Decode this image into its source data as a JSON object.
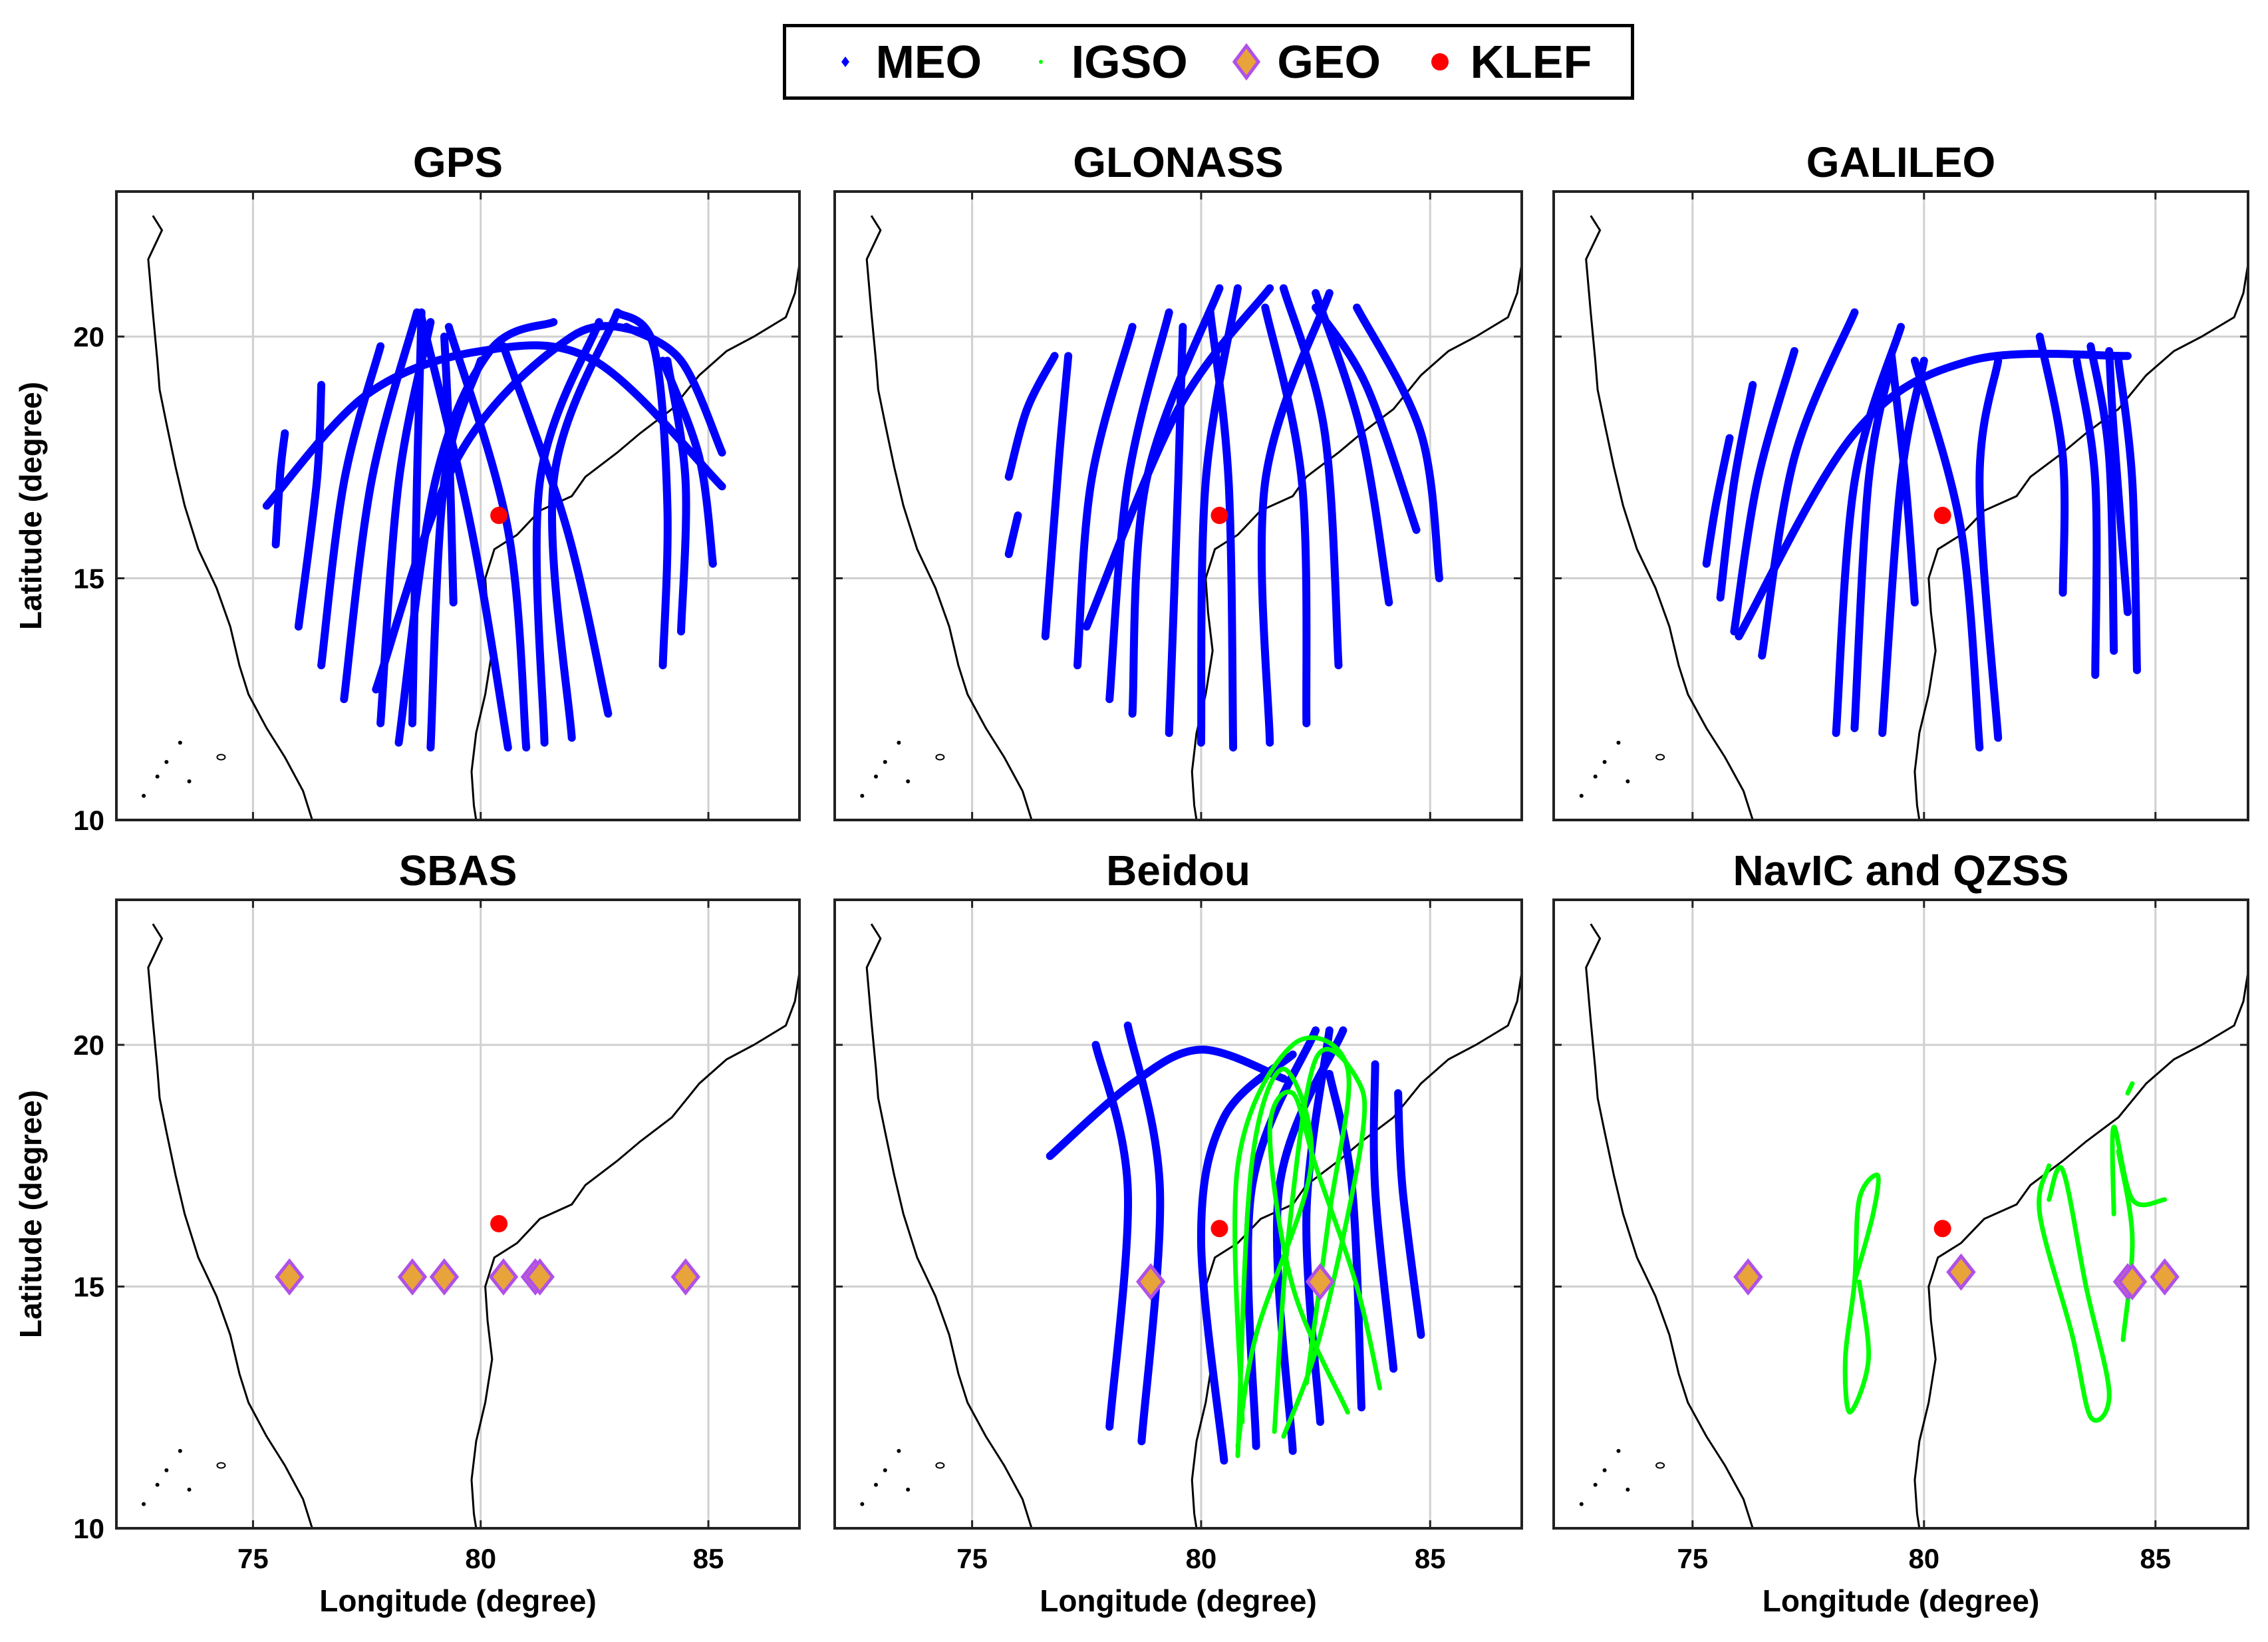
{
  "legend": {
    "items": [
      {
        "label": "MEO",
        "color": "#0000ff"
      },
      {
        "label": "IGSO",
        "color": "#00ff00"
      },
      {
        "label": "GEO",
        "color": "#e8a33a",
        "edge": "#b050e8"
      },
      {
        "label": "KLEF",
        "color": "#ff0000"
      }
    ]
  },
  "chart_data": [
    {
      "type": "scatter",
      "title": "GPS",
      "ylabel": "Latitude (degree)",
      "xlabel": "",
      "xlim": [
        72,
        87
      ],
      "ylim": [
        10,
        23
      ],
      "xticks": [
        75,
        80,
        85
      ],
      "yticks": [
        10,
        15,
        20
      ],
      "klef": [
        80.4,
        16.3
      ],
      "meo_tracks": [
        [
          [
            75.3,
            16.5
          ],
          [
            77.5,
            18.8
          ],
          [
            80,
            19.7
          ],
          [
            82.5,
            19.5
          ],
          [
            85.3,
            16.9
          ]
        ],
        [
          [
            75.5,
            15.7
          ],
          [
            75.6,
            17.2
          ],
          [
            75.7,
            18
          ]
        ],
        [
          [
            76,
            14
          ],
          [
            76.4,
            17
          ],
          [
            76.5,
            19
          ]
        ],
        [
          [
            76.5,
            13.2
          ],
          [
            77,
            17
          ],
          [
            77.8,
            19.8
          ]
        ],
        [
          [
            77,
            12.5
          ],
          [
            77.6,
            17
          ],
          [
            78.6,
            20.5
          ]
        ],
        [
          [
            77.8,
            12
          ],
          [
            78.2,
            17
          ],
          [
            78.9,
            20.3
          ]
        ],
        [
          [
            78.2,
            11.6
          ],
          [
            79,
            17
          ],
          [
            80.2,
            19.7
          ],
          [
            81.6,
            20.3
          ]
        ],
        [
          [
            78.5,
            12
          ],
          [
            78.6,
            17
          ],
          [
            78.7,
            20.5
          ]
        ],
        [
          [
            78.9,
            11.5
          ],
          [
            79.2,
            17
          ],
          [
            80,
            19.5
          ]
        ],
        [
          [
            79.4,
            14.5
          ],
          [
            79.3,
            18
          ],
          [
            79.2,
            20
          ]
        ],
        [
          [
            80.6,
            11.5
          ],
          [
            79.8,
            16
          ],
          [
            78.7,
            20.4
          ]
        ],
        [
          [
            81,
            11.5
          ],
          [
            80.6,
            16
          ],
          [
            79.3,
            20.2
          ]
        ],
        [
          [
            81.4,
            11.6
          ],
          [
            81.3,
            17
          ],
          [
            82.6,
            20.3
          ]
        ],
        [
          [
            82,
            11.7
          ],
          [
            81.6,
            17
          ],
          [
            83,
            20.5
          ]
        ],
        [
          [
            82.8,
            12.2
          ],
          [
            81.9,
            16
          ],
          [
            80.5,
            19.8
          ]
        ],
        [
          [
            84,
            13.2
          ],
          [
            84.1,
            16.5
          ],
          [
            83.8,
            19.8
          ],
          [
            83,
            20.5
          ]
        ],
        [
          [
            84.4,
            13.9
          ],
          [
            84.5,
            17
          ],
          [
            84.1,
            19.5
          ]
        ],
        [
          [
            85.1,
            15.3
          ],
          [
            84.8,
            17.5
          ],
          [
            84,
            19.5
          ]
        ],
        [
          [
            85.3,
            17.6
          ],
          [
            84.4,
            19.5
          ],
          [
            83.2,
            20.2
          ]
        ],
        [
          [
            77.7,
            12.7
          ],
          [
            79.5,
            17.5
          ],
          [
            82,
            20
          ],
          [
            83.6,
            20.1
          ]
        ]
      ]
    },
    {
      "type": "scatter",
      "title": "GLONASS",
      "ylabel": "",
      "xlabel": "",
      "xlim": [
        72,
        87
      ],
      "ylim": [
        10,
        23
      ],
      "xticks": [
        75,
        80,
        85
      ],
      "yticks": [
        10,
        15,
        20
      ],
      "klef": [
        80.4,
        16.3
      ],
      "meo_tracks": [
        [
          [
            75.8,
            17.1
          ],
          [
            76.2,
            18.5
          ],
          [
            76.8,
            19.6
          ]
        ],
        [
          [
            75.8,
            15.5
          ],
          [
            76,
            16.3
          ]
        ],
        [
          [
            76.6,
            13.8
          ],
          [
            76.9,
            17.5
          ],
          [
            77.1,
            19.6
          ]
        ],
        [
          [
            77.3,
            13.2
          ],
          [
            77.6,
            17
          ],
          [
            78.5,
            20.2
          ]
        ],
        [
          [
            78,
            12.5
          ],
          [
            78.4,
            17
          ],
          [
            79.3,
            20.5
          ]
        ],
        [
          [
            78.5,
            12.2
          ],
          [
            78.8,
            17
          ],
          [
            80.4,
            21
          ]
        ],
        [
          [
            79.3,
            11.8
          ],
          [
            79.5,
            17
          ],
          [
            79.6,
            20.2
          ]
        ],
        [
          [
            80,
            11.6
          ],
          [
            80.1,
            17
          ],
          [
            80.8,
            21
          ]
        ],
        [
          [
            80.7,
            11.5
          ],
          [
            80.6,
            17
          ],
          [
            80.2,
            20.5
          ]
        ],
        [
          [
            81.5,
            11.6
          ],
          [
            81.4,
            17
          ],
          [
            82.8,
            20.9
          ]
        ],
        [
          [
            82.3,
            12
          ],
          [
            82.2,
            17
          ],
          [
            81.4,
            20.6
          ]
        ],
        [
          [
            83,
            13.2
          ],
          [
            82.7,
            18
          ],
          [
            81.8,
            21
          ]
        ],
        [
          [
            84.1,
            14.5
          ],
          [
            83.5,
            18
          ],
          [
            82.5,
            20.9
          ]
        ],
        [
          [
            85.2,
            15
          ],
          [
            84.8,
            18
          ],
          [
            83.4,
            20.6
          ]
        ],
        [
          [
            84.7,
            16
          ],
          [
            83.6,
            19
          ],
          [
            82.5,
            20.6
          ]
        ],
        [
          [
            77.5,
            14
          ],
          [
            79.5,
            18.5
          ],
          [
            81.5,
            21
          ]
        ]
      ]
    },
    {
      "type": "scatter",
      "title": "GALILEO",
      "ylabel": "",
      "xlabel": "",
      "xlim": [
        72,
        87
      ],
      "ylim": [
        10,
        23
      ],
      "xticks": [
        75,
        80,
        85
      ],
      "yticks": [
        10,
        15,
        20
      ],
      "klef": [
        80.4,
        16.3
      ],
      "meo_tracks": [
        [
          [
            75.3,
            15.3
          ],
          [
            75.5,
            16.5
          ],
          [
            75.8,
            17.9
          ]
        ],
        [
          [
            75.6,
            14.6
          ],
          [
            75.9,
            17
          ],
          [
            76.3,
            19
          ]
        ],
        [
          [
            75.9,
            13.9
          ],
          [
            76.4,
            17
          ],
          [
            77.2,
            19.7
          ]
        ],
        [
          [
            76.5,
            13.4
          ],
          [
            77.2,
            17.5
          ],
          [
            78.5,
            20.5
          ]
        ],
        [
          [
            78.1,
            11.8
          ],
          [
            78.5,
            17
          ],
          [
            79.5,
            20.2
          ]
        ],
        [
          [
            78.5,
            11.9
          ],
          [
            78.8,
            17
          ],
          [
            79.3,
            19.5
          ]
        ],
        [
          [
            79.1,
            11.8
          ],
          [
            79.5,
            17
          ],
          [
            80,
            19.5
          ]
        ],
        [
          [
            79.8,
            14.5
          ],
          [
            79.6,
            17
          ],
          [
            79.3,
            19.6
          ]
        ],
        [
          [
            81.2,
            11.5
          ],
          [
            80.8,
            16
          ],
          [
            79.8,
            19.5
          ]
        ],
        [
          [
            81.6,
            11.7
          ],
          [
            81.2,
            17
          ],
          [
            81.6,
            19.5
          ]
        ],
        [
          [
            83,
            14.7
          ],
          [
            83,
            17.5
          ],
          [
            82.5,
            20
          ]
        ],
        [
          [
            83.7,
            13
          ],
          [
            83.7,
            17
          ],
          [
            83.3,
            19.5
          ]
        ],
        [
          [
            84.1,
            13.5
          ],
          [
            84,
            17.5
          ],
          [
            83.6,
            19.8
          ]
        ],
        [
          [
            84.4,
            14.3
          ],
          [
            84.1,
            18
          ],
          [
            84,
            19.7
          ]
        ],
        [
          [
            84.6,
            13.1
          ],
          [
            84.5,
            17
          ],
          [
            84.2,
            19.5
          ]
        ],
        [
          [
            76,
            13.8
          ],
          [
            78.5,
            18
          ],
          [
            81,
            19.5
          ],
          [
            84.4,
            19.6
          ]
        ]
      ]
    },
    {
      "type": "scatter",
      "title": "SBAS",
      "ylabel": "Latitude (degree)",
      "xlabel": "Longitude (degree)",
      "xlim": [
        72,
        87
      ],
      "ylim": [
        10,
        23
      ],
      "xticks": [
        75,
        80,
        85
      ],
      "yticks": [
        10,
        15,
        20
      ],
      "klef": [
        80.4,
        16.3
      ],
      "geo": [
        [
          75.8,
          15.2
        ],
        [
          78.5,
          15.2
        ],
        [
          79.2,
          15.2
        ],
        [
          80.5,
          15.2
        ],
        [
          81.2,
          15.2
        ],
        [
          81.3,
          15.2
        ],
        [
          84.5,
          15.2
        ]
      ]
    },
    {
      "type": "scatter",
      "title": "Beidou",
      "ylabel": "",
      "xlabel": "Longitude (degree)",
      "xlim": [
        72,
        87
      ],
      "ylim": [
        10,
        23
      ],
      "xticks": [
        75,
        80,
        85
      ],
      "yticks": [
        10,
        15,
        20
      ],
      "klef": [
        80.4,
        16.2
      ],
      "meo_tracks": [
        [
          [
            76.7,
            17.7
          ],
          [
            78.5,
            19.2
          ],
          [
            80,
            19.9
          ],
          [
            81.8,
            19.3
          ]
        ],
        [
          [
            78,
            12.1
          ],
          [
            78.4,
            17
          ],
          [
            77.7,
            20
          ]
        ],
        [
          [
            78.7,
            11.8
          ],
          [
            79.1,
            17
          ],
          [
            78.4,
            20.4
          ]
        ],
        [
          [
            80.5,
            11.4
          ],
          [
            80,
            16
          ],
          [
            80.5,
            18.5
          ],
          [
            82,
            19.8
          ]
        ],
        [
          [
            81.2,
            11.7
          ],
          [
            81.1,
            17
          ],
          [
            82.5,
            20.3
          ]
        ],
        [
          [
            82,
            11.6
          ],
          [
            81.7,
            17
          ],
          [
            83.1,
            20.3
          ]
        ],
        [
          [
            82.6,
            12.2
          ],
          [
            82.3,
            16.5
          ],
          [
            82.8,
            20.3
          ]
        ],
        [
          [
            83.5,
            12.5
          ],
          [
            83.3,
            17
          ],
          [
            82.8,
            19.4
          ]
        ],
        [
          [
            84.2,
            13.3
          ],
          [
            83.8,
            17
          ],
          [
            83.8,
            19.6
          ]
        ],
        [
          [
            84.8,
            14
          ],
          [
            84.4,
            17
          ],
          [
            84.3,
            19
          ]
        ]
      ],
      "igso_tracks": [
        [
          [
            80.8,
            11.5
          ],
          [
            81.1,
            17.5
          ],
          [
            81.8,
            19.5
          ],
          [
            82.4,
            17.5
          ],
          [
            81.2,
            14
          ],
          [
            80.8,
            11.7
          ]
        ],
        [
          [
            81.6,
            12
          ],
          [
            81.9,
            16
          ],
          [
            82.5,
            19.7
          ],
          [
            83.4,
            19.3
          ],
          [
            83.5,
            18
          ],
          [
            82.6,
            14
          ],
          [
            81.8,
            11.9
          ]
        ],
        [
          [
            83.9,
            12.9
          ],
          [
            83.4,
            15
          ],
          [
            82.5,
            17.5
          ],
          [
            82,
            19
          ],
          [
            81.5,
            18.2
          ],
          [
            82,
            15
          ],
          [
            83.2,
            12.4
          ]
        ],
        [
          [
            80.9,
            12.2
          ],
          [
            80.8,
            17.5
          ],
          [
            82,
            20
          ],
          [
            83.2,
            19.5
          ],
          [
            82.8,
            16.5
          ],
          [
            82.3,
            13
          ]
        ]
      ],
      "geo": [
        [
          78.9,
          15.1
        ],
        [
          82.6,
          15.1
        ]
      ]
    },
    {
      "type": "scatter",
      "title": "NavIC and QZSS",
      "ylabel": "",
      "xlabel": "Longitude (degree)",
      "xlim": [
        72,
        87
      ],
      "ylim": [
        10,
        23
      ],
      "xticks": [
        75,
        80,
        85
      ],
      "yticks": [
        10,
        15,
        20
      ],
      "klef": [
        80.4,
        16.2
      ],
      "igso_tracks": [
        [
          [
            78.5,
            15.1
          ],
          [
            78.9,
            16.5
          ],
          [
            79,
            17.3
          ],
          [
            78.6,
            16.8
          ],
          [
            78.5,
            15.1
          ],
          [
            78.3,
            13.5
          ],
          [
            78.4,
            12.4
          ],
          [
            78.8,
            13.5
          ],
          [
            78.6,
            15.1
          ]
        ],
        [
          [
            82.7,
            16.8
          ],
          [
            83,
            17.4
          ],
          [
            83.5,
            15
          ],
          [
            84,
            12.8
          ],
          [
            83.6,
            12.3
          ],
          [
            83.2,
            14
          ],
          [
            82.5,
            16.5
          ],
          [
            82.7,
            17.5
          ]
        ],
        [
          [
            84.1,
            16.5
          ],
          [
            84.1,
            18.3
          ],
          [
            84.5,
            16.8
          ],
          [
            85.2,
            16.8
          ]
        ],
        [
          [
            84.3,
            13.9
          ],
          [
            84.5,
            16
          ],
          [
            84.2,
            17.8
          ]
        ],
        [
          [
            84.4,
            19
          ],
          [
            84.5,
            19.2
          ]
        ]
      ],
      "geo": [
        [
          76.2,
          15.2
        ],
        [
          80.8,
          15.3
        ],
        [
          84.4,
          15.1
        ],
        [
          84.5,
          15.1
        ],
        [
          85.2,
          15.2
        ]
      ]
    }
  ]
}
